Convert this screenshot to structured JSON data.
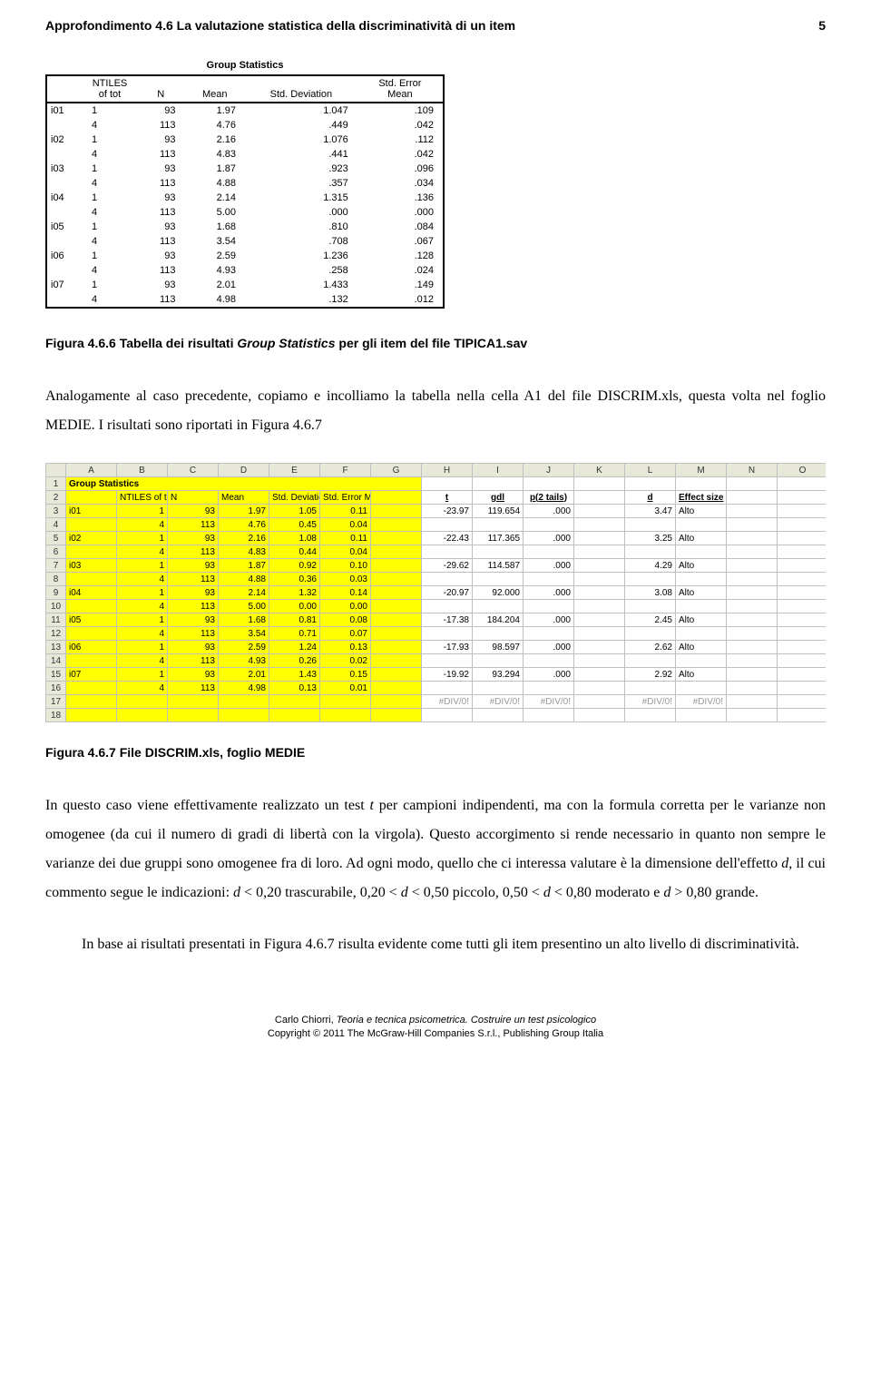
{
  "header": {
    "title": "Approfondimento 4.6    La valutazione statistica della discriminatività di un item",
    "page_number": "5"
  },
  "group_stats": {
    "title": "Group Statistics",
    "columns": [
      "",
      "NTILES of tot",
      "N",
      "Mean",
      "Std. Deviation",
      "Std. Error Mean"
    ],
    "rows": [
      [
        "i01",
        "1",
        "93",
        "1.97",
        "1.047",
        ".109"
      ],
      [
        "",
        "4",
        "113",
        "4.76",
        ".449",
        ".042"
      ],
      [
        "i02",
        "1",
        "93",
        "2.16",
        "1.076",
        ".112"
      ],
      [
        "",
        "4",
        "113",
        "4.83",
        ".441",
        ".042"
      ],
      [
        "i03",
        "1",
        "93",
        "1.87",
        ".923",
        ".096"
      ],
      [
        "",
        "4",
        "113",
        "4.88",
        ".357",
        ".034"
      ],
      [
        "i04",
        "1",
        "93",
        "2.14",
        "1.315",
        ".136"
      ],
      [
        "",
        "4",
        "113",
        "5.00",
        ".000",
        ".000"
      ],
      [
        "i05",
        "1",
        "93",
        "1.68",
        ".810",
        ".084"
      ],
      [
        "",
        "4",
        "113",
        "3.54",
        ".708",
        ".067"
      ],
      [
        "i06",
        "1",
        "93",
        "2.59",
        "1.236",
        ".128"
      ],
      [
        "",
        "4",
        "113",
        "4.93",
        ".258",
        ".024"
      ],
      [
        "i07",
        "1",
        "93",
        "2.01",
        "1.433",
        ".149"
      ],
      [
        "",
        "4",
        "113",
        "4.98",
        ".132",
        ".012"
      ]
    ]
  },
  "caption1_prefix": "Figura 4.6.6 Tabella dei risultati ",
  "caption1_italic1": "Group Statistics",
  "caption1_mid": " per gli item del file TIPICA1.sav",
  "paragraph1": "Analogamente al caso precedente, copiamo e incolliamo la tabella nella cella A1 del file DISCRIM.xls, questa volta nel foglio MEDIE. I risultati sono riportati in Figura 4.6.7",
  "spreadsheet": {
    "col_letters": [
      "A",
      "B",
      "C",
      "D",
      "E",
      "F",
      "G",
      "H",
      "I",
      "J",
      "K",
      "L",
      "M",
      "N",
      "O"
    ],
    "headers_row2": [
      "",
      "NTILES of tot",
      "N",
      "Mean",
      "Std. Deviation",
      "Std. Error Mean",
      "",
      "t",
      "gdl",
      "p(2 tails)",
      "",
      "d",
      "Effect size"
    ],
    "title_cell": "Group Statistics",
    "data_rows": [
      {
        "r": "3",
        "y": [
          "i01",
          "1",
          "93",
          "1.97",
          "1.05",
          "0.11",
          ""
        ],
        "w": [
          "-23.97",
          "119.654",
          ".000",
          "",
          "3.47",
          "Alto"
        ]
      },
      {
        "r": "4",
        "y": [
          "",
          "4",
          "113",
          "4.76",
          "0.45",
          "0.04",
          ""
        ],
        "w": [
          "",
          "",
          "",
          "",
          "",
          ""
        ]
      },
      {
        "r": "5",
        "y": [
          "i02",
          "1",
          "93",
          "2.16",
          "1.08",
          "0.11",
          ""
        ],
        "w": [
          "-22.43",
          "117.365",
          ".000",
          "",
          "3.25",
          "Alto"
        ]
      },
      {
        "r": "6",
        "y": [
          "",
          "4",
          "113",
          "4.83",
          "0.44",
          "0.04",
          ""
        ],
        "w": [
          "",
          "",
          "",
          "",
          "",
          ""
        ]
      },
      {
        "r": "7",
        "y": [
          "i03",
          "1",
          "93",
          "1.87",
          "0.92",
          "0.10",
          ""
        ],
        "w": [
          "-29.62",
          "114.587",
          ".000",
          "",
          "4.29",
          "Alto"
        ]
      },
      {
        "r": "8",
        "y": [
          "",
          "4",
          "113",
          "4.88",
          "0.36",
          "0.03",
          ""
        ],
        "w": [
          "",
          "",
          "",
          "",
          "",
          ""
        ]
      },
      {
        "r": "9",
        "y": [
          "i04",
          "1",
          "93",
          "2.14",
          "1.32",
          "0.14",
          ""
        ],
        "w": [
          "-20.97",
          "92.000",
          ".000",
          "",
          "3.08",
          "Alto"
        ]
      },
      {
        "r": "10",
        "y": [
          "",
          "4",
          "113",
          "5.00",
          "0.00",
          "0.00",
          ""
        ],
        "w": [
          "",
          "",
          "",
          "",
          "",
          ""
        ]
      },
      {
        "r": "11",
        "y": [
          "i05",
          "1",
          "93",
          "1.68",
          "0.81",
          "0.08",
          ""
        ],
        "w": [
          "-17.38",
          "184.204",
          ".000",
          "",
          "2.45",
          "Alto"
        ]
      },
      {
        "r": "12",
        "y": [
          "",
          "4",
          "113",
          "3.54",
          "0.71",
          "0.07",
          ""
        ],
        "w": [
          "",
          "",
          "",
          "",
          "",
          ""
        ]
      },
      {
        "r": "13",
        "y": [
          "i06",
          "1",
          "93",
          "2.59",
          "1.24",
          "0.13",
          ""
        ],
        "w": [
          "-17.93",
          "98.597",
          ".000",
          "",
          "2.62",
          "Alto"
        ]
      },
      {
        "r": "14",
        "y": [
          "",
          "4",
          "113",
          "4.93",
          "0.26",
          "0.02",
          ""
        ],
        "w": [
          "",
          "",
          "",
          "",
          "",
          ""
        ]
      },
      {
        "r": "15",
        "y": [
          "i07",
          "1",
          "93",
          "2.01",
          "1.43",
          "0.15",
          ""
        ],
        "w": [
          "-19.92",
          "93.294",
          ".000",
          "",
          "2.92",
          "Alto"
        ]
      },
      {
        "r": "16",
        "y": [
          "",
          "4",
          "113",
          "4.98",
          "0.13",
          "0.01",
          ""
        ],
        "w": [
          "",
          "",
          "",
          "",
          "",
          ""
        ]
      }
    ],
    "error_rows": [
      {
        "r": "17",
        "vals": [
          "#DIV/0!",
          "#DIV/0!",
          "#DIV/0!",
          "",
          "#DIV/0!",
          "#DIV/0!"
        ]
      },
      {
        "r": "18",
        "vals": [
          "",
          "",
          "",
          "",
          "",
          ""
        ]
      }
    ]
  },
  "caption2": "Figura 4.6.7 File DISCRIM.xls, foglio MEDIE",
  "paragraph2_parts": [
    "In questo caso viene effettivamente realizzato un test ",
    "t",
    " per campioni indipendenti, ma con la formula corretta per le varianze non omogenee (da cui il numero di gradi di libertà con la virgola). Questo accorgimento si rende necessario in quanto non sempre le varianze dei due gruppi sono omogenee fra di loro. Ad ogni modo, quello che ci interessa valutare è la dimensione dell'effetto ",
    "d",
    ", il cui commento segue le indicazioni: ",
    "d",
    " < 0,20 trascurabile, 0,20 < ",
    "d",
    " < 0,50 piccolo, 0,50 < ",
    "d",
    " < 0,80 moderato e ",
    "d",
    " > 0,80 grande."
  ],
  "paragraph3": "In base ai risultati presentati in Figura 4.6.7 risulta evidente come tutti gli item presentino un alto livello di discriminatività.",
  "footer": {
    "line1_pre": "Carlo Chiorri, ",
    "line1_italic": "Teoria e tecnica psicometrica. Costruire un test psicologico",
    "line2": "Copyright © 2011 The McGraw-Hill Companies S.r.l., Publishing Group Italia"
  },
  "colors": {
    "yellow": "#ffff00",
    "grid": "#c0c0c0",
    "header_bg": "#e8e8d8"
  }
}
